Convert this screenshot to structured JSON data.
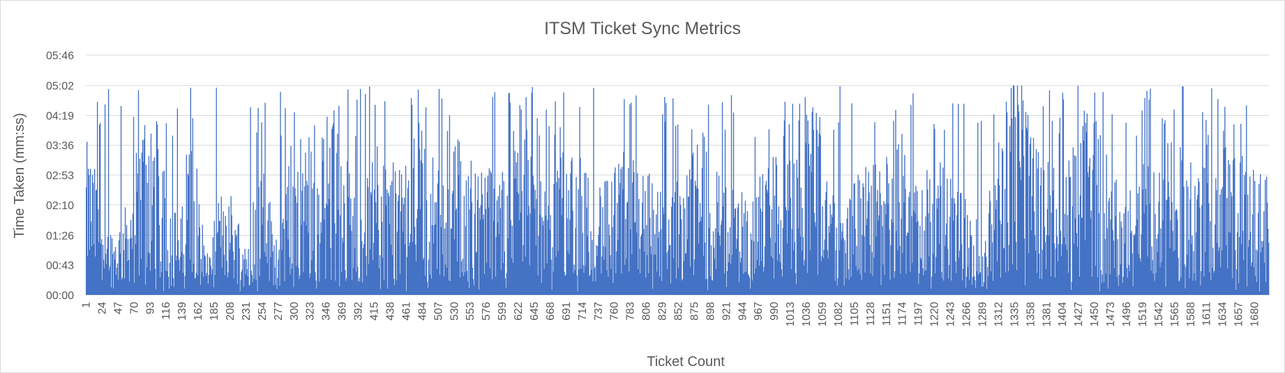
{
  "chart_data": {
    "type": "bar",
    "title": "ITSM Ticket Sync Metrics",
    "xlabel": "Ticket Count",
    "ylabel": "Time  Taken (mm:ss)",
    "series_color": "#4472c4",
    "gridlines": true,
    "legend": "none",
    "ylim_seconds": [
      0,
      346
    ],
    "y_ticks": [
      "00:00",
      "00:43",
      "01:26",
      "02:10",
      "02:53",
      "03:36",
      "04:19",
      "05:02",
      "05:46"
    ],
    "y_tick_seconds": [
      0,
      43,
      86,
      130,
      173,
      216,
      259,
      302,
      346
    ],
    "x_range": [
      1,
      1700
    ],
    "x_ticks": [
      1,
      24,
      47,
      70,
      93,
      116,
      139,
      162,
      185,
      208,
      231,
      254,
      277,
      300,
      323,
      346,
      369,
      392,
      415,
      438,
      461,
      484,
      507,
      530,
      553,
      576,
      599,
      622,
      645,
      668,
      691,
      714,
      737,
      760,
      783,
      806,
      829,
      852,
      875,
      898,
      921,
      944,
      967,
      990,
      1013,
      1036,
      1059,
      1082,
      1105,
      1128,
      1151,
      1174,
      1197,
      1220,
      1243,
      1266,
      1289,
      1312,
      1335,
      1358,
      1381,
      1404,
      1427,
      1450,
      1473,
      1496,
      1519,
      1542,
      1565,
      1588,
      1611,
      1634,
      1657,
      1680
    ],
    "approx_max_seconds": 302,
    "segment_levels_seconds": [
      [
        1,
        150
      ],
      [
        15,
        120
      ],
      [
        40,
        60
      ],
      [
        60,
        90
      ],
      [
        90,
        200
      ],
      [
        110,
        150
      ],
      [
        135,
        60
      ],
      [
        150,
        180
      ],
      [
        175,
        40
      ],
      [
        200,
        120
      ],
      [
        230,
        60
      ],
      [
        250,
        140
      ],
      [
        280,
        50
      ],
      [
        300,
        180
      ],
      [
        330,
        160
      ],
      [
        360,
        180
      ],
      [
        390,
        90
      ],
      [
        420,
        150
      ],
      [
        450,
        120
      ],
      [
        480,
        170
      ],
      [
        510,
        120
      ],
      [
        540,
        160
      ],
      [
        570,
        140
      ],
      [
        600,
        120
      ],
      [
        630,
        180
      ],
      [
        660,
        100
      ],
      [
        690,
        150
      ],
      [
        720,
        130
      ],
      [
        750,
        110
      ],
      [
        780,
        150
      ],
      [
        810,
        120
      ],
      [
        840,
        90
      ],
      [
        870,
        160
      ],
      [
        900,
        140
      ],
      [
        930,
        110
      ],
      [
        960,
        100
      ],
      [
        990,
        150
      ],
      [
        1020,
        200
      ],
      [
        1050,
        210
      ],
      [
        1080,
        70
      ],
      [
        1110,
        120
      ],
      [
        1140,
        130
      ],
      [
        1170,
        150
      ],
      [
        1200,
        120
      ],
      [
        1230,
        130
      ],
      [
        1260,
        100
      ],
      [
        1290,
        60
      ],
      [
        1310,
        150
      ],
      [
        1340,
        230
      ],
      [
        1370,
        150
      ],
      [
        1400,
        120
      ],
      [
        1430,
        170
      ],
      [
        1460,
        160
      ],
      [
        1490,
        90
      ],
      [
        1520,
        130
      ],
      [
        1550,
        150
      ],
      [
        1580,
        140
      ],
      [
        1610,
        160
      ],
      [
        1640,
        150
      ],
      [
        1670,
        130
      ],
      [
        1700,
        120
      ]
    ]
  }
}
